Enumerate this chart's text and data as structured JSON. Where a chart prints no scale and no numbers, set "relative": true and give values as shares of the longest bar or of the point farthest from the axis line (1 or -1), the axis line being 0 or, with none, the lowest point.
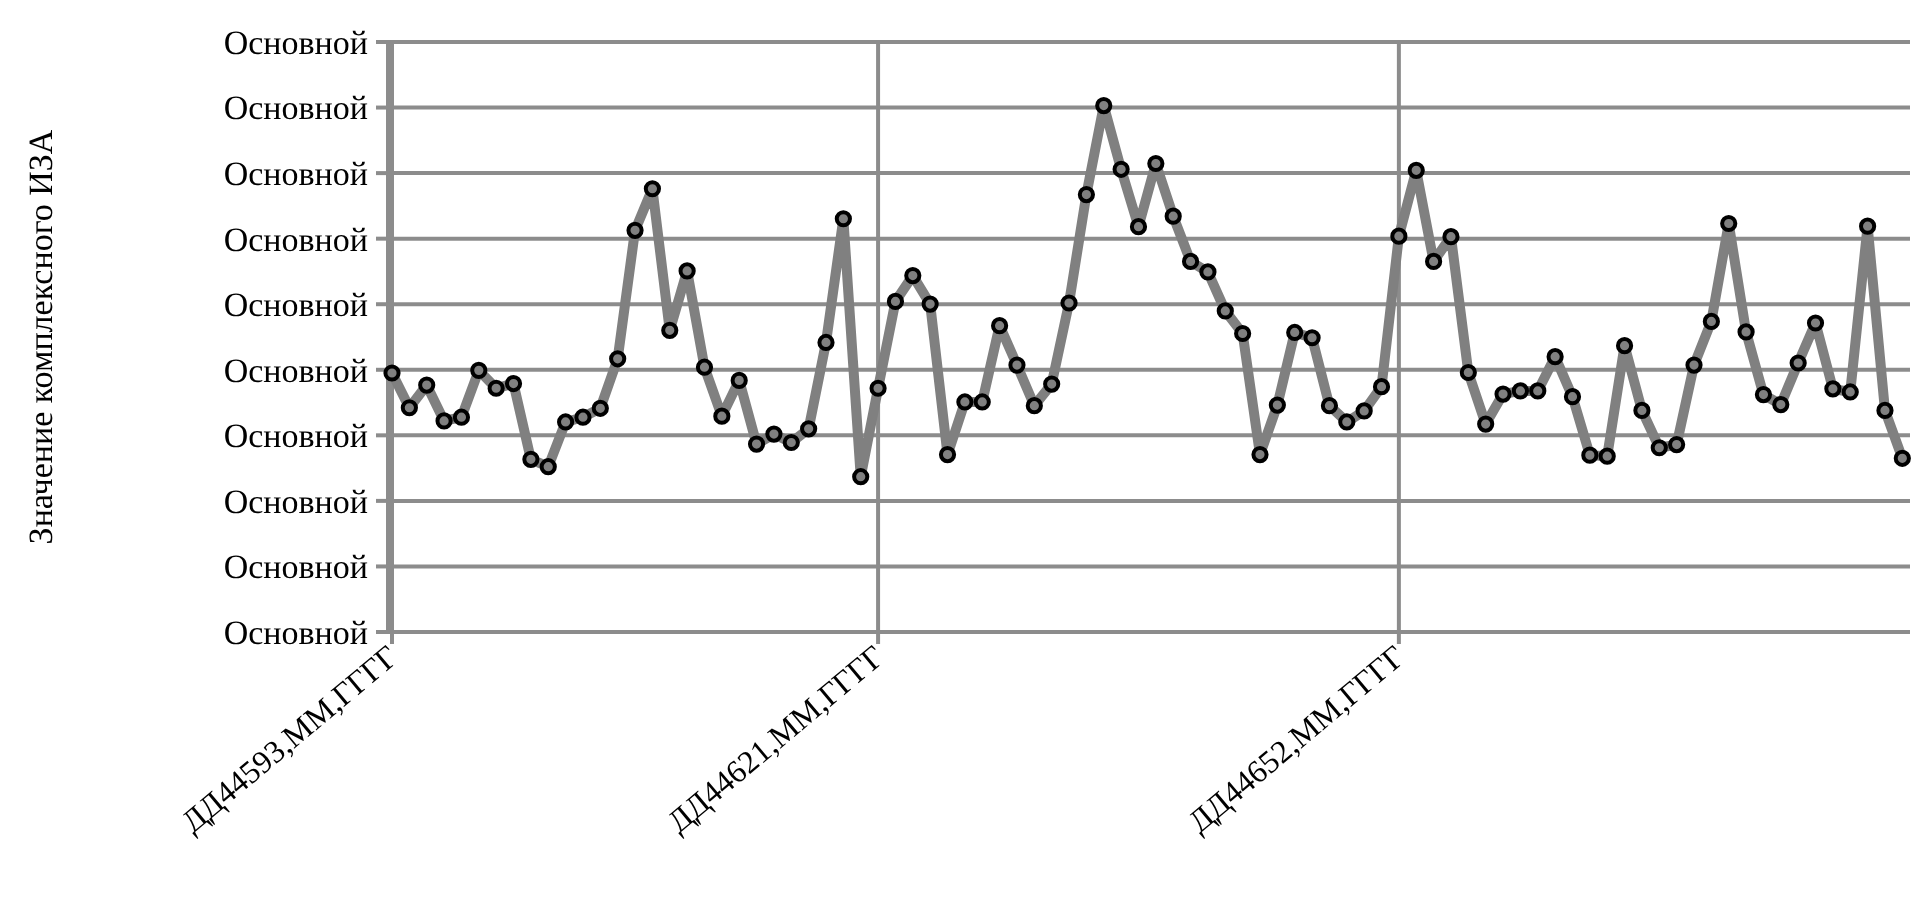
{
  "chart_data": {
    "type": "line",
    "ylabel": "Значение комплексного ИЗА",
    "relative": true,
    "categories": [
      "ДД44593,ММ,ГГГГ",
      null,
      null,
      null,
      null,
      null,
      null,
      null,
      null,
      null,
      null,
      null,
      null,
      null,
      null,
      null,
      null,
      null,
      null,
      null,
      null,
      null,
      null,
      null,
      null,
      null,
      null,
      null,
      "ДД44621,ММ,ГГГГ",
      null,
      null,
      null,
      null,
      null,
      null,
      null,
      null,
      null,
      null,
      null,
      null,
      null,
      null,
      null,
      null,
      null,
      null,
      null,
      null,
      null,
      null,
      null,
      null,
      null,
      null,
      null,
      null,
      null,
      "ДД44652,ММ,ГГГГ",
      null,
      null,
      null,
      null,
      null,
      null,
      null,
      null,
      null,
      null,
      null,
      null,
      null,
      null,
      null,
      null,
      null,
      null,
      null,
      null,
      null,
      null,
      null,
      null,
      null,
      null,
      null,
      null,
      null
    ],
    "series": [
      {
        "color": "#808080",
        "values": [
          0.492,
          0.426,
          0.469,
          0.401,
          0.408,
          0.497,
          0.463,
          0.472,
          0.328,
          0.314,
          0.399,
          0.408,
          0.425,
          0.519,
          0.763,
          0.842,
          0.573,
          0.686,
          0.503,
          0.41,
          0.478,
          0.357,
          0.376,
          0.36,
          0.386,
          0.55,
          0.785,
          0.295,
          0.463,
          0.628,
          0.677,
          0.623,
          0.337,
          0.437,
          0.437,
          0.582,
          0.507,
          0.43,
          0.471,
          0.625,
          0.831,
          1,
          0.879,
          0.77,
          0.89,
          0.79,
          0.704,
          0.684,
          0.61,
          0.567,
          0.337,
          0.431,
          0.569,
          0.559,
          0.43,
          0.399,
          0.42,
          0.466,
          0.752,
          0.877,
          0.704,
          0.751,
          0.493,
          0.395,
          0.452,
          0.458,
          0.458,
          0.523,
          0.447,
          0.336,
          0.334,
          0.544,
          0.421,
          0.35,
          0.356,
          0.507,
          0.59,
          0.776,
          0.57,
          0.451,
          0.432,
          0.511,
          0.587,
          0.462,
          0.456,
          0.771,
          0.421,
          0.33
        ]
      }
    ],
    "annotations": [
      "Основной",
      "Основной",
      "Основной",
      "Основной",
      "Основной",
      "Основной",
      "Основной",
      "Основной",
      "Основной",
      "Основной"
    ],
    "grid": true,
    "marker": "circle",
    "line_style": "solid"
  }
}
